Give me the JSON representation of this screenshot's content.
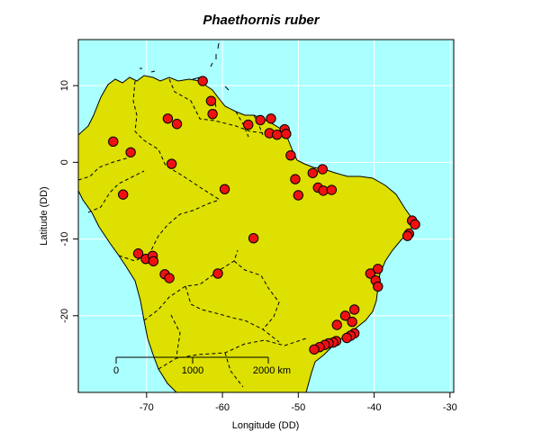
{
  "title": "Phaethornis ruber",
  "colors": {
    "ocean": "#aaffff",
    "land": "#dde000",
    "point_fill": "#ee1111",
    "grid": "#ffffff"
  },
  "chart_data": {
    "type": "scatter",
    "title": "Phaethornis ruber",
    "xlabel": "Longitude (DD)",
    "ylabel": "Latitude (DD)",
    "xlim": [
      -79,
      -29.5
    ],
    "ylim": [
      -30,
      16
    ],
    "x_ticks": [
      -70,
      -60,
      -50,
      -40,
      -30
    ],
    "y_ticks": [
      10,
      0,
      -10,
      -20
    ],
    "grid": true,
    "scale_bar": {
      "labels": [
        "0",
        "1000",
        "2000 km"
      ]
    },
    "points": [
      {
        "x": -62.6,
        "y": 10.6
      },
      {
        "x": -61.5,
        "y": 8.0
      },
      {
        "x": -61.3,
        "y": 6.3
      },
      {
        "x": -67.2,
        "y": 5.7
      },
      {
        "x": -66.0,
        "y": 5.0
      },
      {
        "x": -56.6,
        "y": 4.9
      },
      {
        "x": -55.0,
        "y": 5.5
      },
      {
        "x": -53.6,
        "y": 5.7
      },
      {
        "x": -53.8,
        "y": 3.8
      },
      {
        "x": -52.8,
        "y": 3.6
      },
      {
        "x": -51.8,
        "y": 4.3
      },
      {
        "x": -51.6,
        "y": 3.7
      },
      {
        "x": -74.4,
        "y": 2.7
      },
      {
        "x": -72.1,
        "y": 1.3
      },
      {
        "x": -66.7,
        "y": -0.2
      },
      {
        "x": -51.0,
        "y": 0.9
      },
      {
        "x": -46.8,
        "y": -0.9
      },
      {
        "x": -48.1,
        "y": -1.4
      },
      {
        "x": -50.4,
        "y": -2.2
      },
      {
        "x": -47.4,
        "y": -3.3
      },
      {
        "x": -46.7,
        "y": -3.7
      },
      {
        "x": -45.6,
        "y": -3.6
      },
      {
        "x": -50.0,
        "y": -4.3
      },
      {
        "x": -73.1,
        "y": -4.2
      },
      {
        "x": -59.7,
        "y": -3.5
      },
      {
        "x": -55.9,
        "y": -9.9
      },
      {
        "x": -35.0,
        "y": -7.6
      },
      {
        "x": -34.6,
        "y": -8.1
      },
      {
        "x": -35.4,
        "y": -9.3
      },
      {
        "x": -35.6,
        "y": -9.6
      },
      {
        "x": -71.1,
        "y": -11.9
      },
      {
        "x": -70.1,
        "y": -12.6
      },
      {
        "x": -69.2,
        "y": -12.2
      },
      {
        "x": -69.1,
        "y": -12.9
      },
      {
        "x": -67.6,
        "y": -14.6
      },
      {
        "x": -67.0,
        "y": -15.1
      },
      {
        "x": -60.6,
        "y": -14.5
      },
      {
        "x": -40.5,
        "y": -14.5
      },
      {
        "x": -39.5,
        "y": -13.9
      },
      {
        "x": -39.8,
        "y": -15.4
      },
      {
        "x": -39.5,
        "y": -16.2
      },
      {
        "x": -42.6,
        "y": -19.2
      },
      {
        "x": -43.8,
        "y": -20.0
      },
      {
        "x": -42.9,
        "y": -20.8
      },
      {
        "x": -44.9,
        "y": -21.2
      },
      {
        "x": -42.6,
        "y": -22.3
      },
      {
        "x": -43.1,
        "y": -22.6
      },
      {
        "x": -43.6,
        "y": -22.9
      },
      {
        "x": -45.0,
        "y": -23.3
      },
      {
        "x": -45.4,
        "y": -23.5
      },
      {
        "x": -46.0,
        "y": -23.6
      },
      {
        "x": -46.5,
        "y": -23.8
      },
      {
        "x": -47.2,
        "y": -24.1
      },
      {
        "x": -47.9,
        "y": -24.4
      }
    ]
  }
}
